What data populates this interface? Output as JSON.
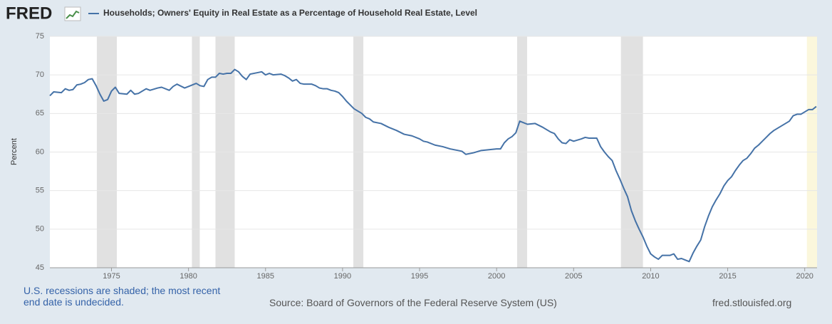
{
  "chart_data": {
    "type": "line",
    "logo": "FRED",
    "ylabel": "Percent",
    "note": "U.S. recessions are shaded; the most recent end date is undecided.",
    "source": "Source: Board of Governors of the Federal Reserve System (US)",
    "site": "fred.stlouisfed.org",
    "xlim": [
      1971.0,
      2020.8
    ],
    "ylim": [
      45,
      75
    ],
    "xticks": [
      1975,
      1980,
      1985,
      1990,
      1995,
      2000,
      2005,
      2010,
      2015,
      2020
    ],
    "yticks": [
      45,
      50,
      55,
      60,
      65,
      70,
      75
    ],
    "grid": true,
    "recession_color": "#e1e1e1",
    "recessions": [
      [
        1974.05,
        1975.35
      ],
      [
        1980.22,
        1980.73
      ],
      [
        1981.75,
        1983.0
      ],
      [
        1990.7,
        1991.35
      ],
      [
        2001.33,
        2001.98
      ],
      [
        2008.07,
        2009.5
      ]
    ],
    "open_recession_color": "#fbf7dc",
    "open_recession": [
      2020.14,
      2020.8
    ],
    "x": [
      1971.0,
      1971.25,
      1971.75,
      1972.0,
      1972.25,
      1972.5,
      1972.75,
      1973.0,
      1973.25,
      1973.5,
      1973.75,
      1974.0,
      1974.25,
      1974.5,
      1974.75,
      1975.0,
      1975.25,
      1975.5,
      1976.0,
      1976.25,
      1976.5,
      1976.75,
      1977.25,
      1977.5,
      1978.0,
      1978.25,
      1978.75,
      1979.0,
      1979.25,
      1979.75,
      1980.0,
      1980.5,
      1980.75,
      1981.0,
      1981.25,
      1981.5,
      1981.75,
      1982.0,
      1982.25,
      1982.5,
      1982.75,
      1983.0,
      1983.25,
      1983.5,
      1983.75,
      1984.0,
      1984.5,
      1984.75,
      1985.0,
      1985.25,
      1985.5,
      1986.0,
      1986.25,
      1986.5,
      1986.75,
      1987.0,
      1987.25,
      1987.5,
      1988.0,
      1988.25,
      1988.5,
      1988.75,
      1989.0,
      1989.25,
      1989.5,
      1989.75,
      1990.0,
      1990.25,
      1990.5,
      1990.75,
      1991.0,
      1991.25,
      1991.5,
      1991.75,
      1992.0,
      1992.5,
      1993.0,
      1993.5,
      1994.0,
      1994.5,
      1995.0,
      1995.25,
      1995.5,
      1996.0,
      1996.5,
      1997.0,
      1997.5,
      1997.75,
      1998.0,
      1998.5,
      1999.0,
      1999.5,
      2000.0,
      2000.25,
      2000.5,
      2000.75,
      2001.0,
      2001.25,
      2001.5,
      2001.75,
      2002.0,
      2002.5,
      2003.0,
      2003.5,
      2003.75,
      2004.0,
      2004.25,
      2004.5,
      2004.75,
      2005.0,
      2005.5,
      2005.75,
      2006.0,
      2006.5,
      2006.75,
      2007.0,
      2007.25,
      2007.5,
      2007.75,
      2008.0,
      2008.25,
      2008.5,
      2008.75,
      2009.0,
      2009.25,
      2009.5,
      2009.75,
      2010.0,
      2010.25,
      2010.5,
      2010.75,
      2011.0,
      2011.25,
      2011.5,
      2011.75,
      2012.0,
      2012.25,
      2012.5,
      2012.75,
      2013.0,
      2013.25,
      2013.5,
      2013.75,
      2014.0,
      2014.25,
      2014.5,
      2014.75,
      2015.0,
      2015.25,
      2015.5,
      2015.75,
      2016.0,
      2016.25,
      2016.5,
      2016.75,
      2017.0,
      2017.25,
      2017.5,
      2017.75,
      2018.0,
      2018.25,
      2018.5,
      2018.75,
      2019.0,
      2019.25,
      2019.5,
      2019.75,
      2020.0,
      2020.25,
      2020.5,
      2020.75
    ],
    "series": [
      {
        "name": "Households; Owners' Equity in Real Estate as a Percentage of Household Real Estate, Level",
        "color": "#4572a7",
        "values": [
          67.3,
          67.8,
          67.7,
          68.2,
          68.0,
          68.1,
          68.7,
          68.8,
          69.0,
          69.4,
          69.5,
          68.6,
          67.5,
          66.6,
          66.8,
          67.9,
          68.4,
          67.6,
          67.5,
          68.0,
          67.5,
          67.6,
          68.2,
          68.0,
          68.3,
          68.4,
          68.0,
          68.5,
          68.8,
          68.3,
          68.5,
          68.9,
          68.6,
          68.5,
          69.4,
          69.7,
          69.7,
          70.2,
          70.1,
          70.2,
          70.2,
          70.7,
          70.4,
          69.8,
          69.4,
          70.1,
          70.3,
          70.4,
          70.0,
          70.2,
          70.0,
          70.1,
          69.9,
          69.6,
          69.2,
          69.4,
          68.9,
          68.8,
          68.8,
          68.6,
          68.3,
          68.2,
          68.2,
          68.0,
          67.9,
          67.7,
          67.2,
          66.6,
          66.1,
          65.6,
          65.3,
          65.0,
          64.5,
          64.3,
          63.9,
          63.7,
          63.2,
          62.8,
          62.3,
          62.1,
          61.7,
          61.4,
          61.3,
          60.9,
          60.7,
          60.4,
          60.2,
          60.1,
          59.7,
          59.9,
          60.2,
          60.3,
          60.4,
          60.4,
          61.2,
          61.7,
          62.0,
          62.5,
          64.0,
          63.8,
          63.6,
          63.7,
          63.2,
          62.6,
          62.4,
          61.7,
          61.2,
          61.1,
          61.6,
          61.4,
          61.7,
          61.9,
          61.8,
          61.8,
          60.7,
          60.0,
          59.4,
          58.9,
          57.6,
          56.5,
          55.3,
          54.2,
          52.4,
          51.1,
          50.0,
          49.0,
          47.8,
          46.8,
          46.4,
          46.1,
          46.6,
          46.6,
          46.6,
          46.8,
          46.1,
          46.2,
          46.0,
          45.8,
          46.9,
          47.8,
          48.6,
          50.3,
          51.7,
          52.9,
          53.8,
          54.6,
          55.6,
          56.3,
          56.8,
          57.6,
          58.3,
          58.9,
          59.2,
          59.8,
          60.5,
          60.9,
          61.4,
          61.9,
          62.4,
          62.8,
          63.1,
          63.4,
          63.7,
          64.0,
          64.7,
          64.9,
          64.9,
          65.2,
          65.5,
          65.5,
          65.9
        ]
      }
    ]
  }
}
